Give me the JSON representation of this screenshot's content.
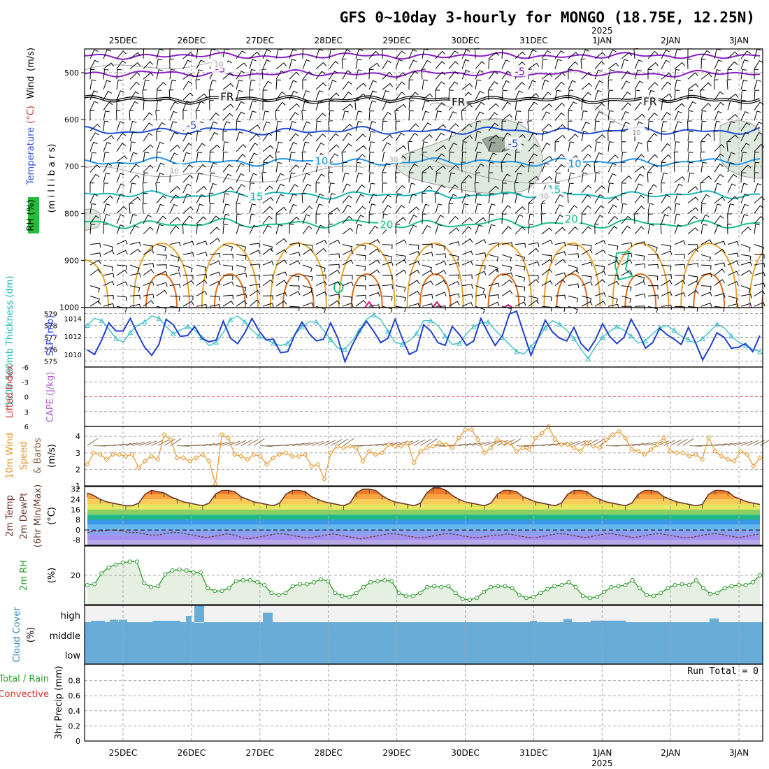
{
  "title": "GFS 0~10day 3-hourly for MONGO (18.75E, 12.25N)",
  "time_axis": {
    "days": [
      "25DEC",
      "26DEC",
      "27DEC",
      "28DEC",
      "29DEC",
      "30DEC",
      "31DEC",
      "1JAN",
      "2JAN",
      "3JAN"
    ],
    "year_label": "2025",
    "year_label_day": "1JAN"
  },
  "colors": {
    "frame": "#000000",
    "grid": "#a8a8a8",
    "purple_contour": "#8a1fc7",
    "blue_contour": "#1f4fd6",
    "lightblue_contour": "#2196e8",
    "cyan_contour": "#19b8b8",
    "teal_contour": "#19c08a",
    "orange_contour": "#e8a32a",
    "darkorange_contour": "#e06b1a",
    "magenta_contour": "#d0127a",
    "rh_shade": "#dfeadf",
    "slp_line": "#1f3fd0",
    "thickness_line": "#3ec0c8",
    "lifted_index_zero": "#e05050",
    "wind_speed": "#e8962a",
    "barb": "#8a6a4a",
    "temp_line": "#6a3a2a",
    "rh2m_line": "#2a9a2a",
    "rh2m_fill": "#e6f0e2",
    "cloud_fill": "#6aacd8",
    "cloud_gap": "#f2f2f2"
  },
  "panels": {
    "upper_air": {
      "ylabel_parts": [
        "RH (%)",
        "Temperature",
        "(°C)",
        "Wind",
        "(m/s)"
      ],
      "ylabel_unit": "(m i l l i b a r s)",
      "pressure_ticks": [
        "500",
        "600",
        "700",
        "800",
        "900",
        "1000"
      ],
      "contour_labels": [
        {
          "text": "-5",
          "day": 1.42,
          "p": 493
        },
        {
          "text": "-5",
          "day": 5.8,
          "p": 499
        },
        {
          "text": "FR",
          "day": 1.52,
          "p": 553
        },
        {
          "text": "FR",
          "day": 4.9,
          "p": 564
        },
        {
          "text": "FR",
          "day": 7.7,
          "p": 563
        },
        {
          "text": "-5",
          "day": 1.0,
          "p": 614
        },
        {
          "text": "-5",
          "day": 5.7,
          "p": 653
        },
        {
          "text": "10",
          "day": 2.9,
          "p": 690
        },
        {
          "text": "10",
          "day": 6.6,
          "p": 696
        },
        {
          "text": "15",
          "day": 1.95,
          "p": 766
        },
        {
          "text": "15",
          "day": 6.3,
          "p": 751
        },
        {
          "text": "20",
          "day": 3.85,
          "p": 826
        },
        {
          "text": "20",
          "day": 6.55,
          "p": 814
        },
        {
          "text": "10",
          "day": 1.4,
          "p": 481
        },
        {
          "text": "10",
          "day": 0.75,
          "p": 709
        },
        {
          "text": "30",
          "day": 3.95,
          "p": 684
        },
        {
          "text": "30",
          "day": 6.15,
          "p": 763
        },
        {
          "text": "10",
          "day": 7.5,
          "p": 627
        }
      ]
    },
    "slp": {
      "label_left": "1000-500mb Thickness (dm)",
      "label_right": "SLP (mb)",
      "thickness_ticks": [
        "579",
        "578",
        "577",
        "576",
        "575"
      ],
      "slp_ticks": [
        "1014",
        "1012",
        "1010"
      ]
    },
    "cape": {
      "label_left": "Lifted Index",
      "label_right": "CAPE (J/kg)",
      "ticks": [
        "-6",
        "-3",
        "0",
        "3",
        "6"
      ]
    },
    "wind10m": {
      "label_lines": [
        "10m Wind",
        "Speed",
        "& Barbs",
        "(m/s)"
      ],
      "ticks": [
        "4",
        "3",
        "2",
        "1"
      ]
    },
    "temp2m": {
      "label_lines": [
        "2m Temp",
        "2m DewPt",
        "(6hr Min/Max)",
        "(°C)"
      ],
      "ticks": [
        "32",
        "24",
        "16",
        "8",
        "0",
        "-8"
      ]
    },
    "rh2m": {
      "label_lines": [
        "2m RH",
        "(%)"
      ],
      "ticks": [
        "20"
      ]
    },
    "cloud": {
      "label_lines": [
        "Cloud Cover",
        "(%)"
      ],
      "levels": [
        "high",
        "middle",
        "low"
      ]
    },
    "precip": {
      "label_lines": [
        "Total / Rain",
        "Convective",
        "3hr Precip (mm)"
      ],
      "ticks": [
        "0",
        "0.2",
        "0.4",
        "0.6",
        "0.8"
      ],
      "run_total": "Run Total = 0"
    }
  },
  "chart_data": [
    {
      "type": "line",
      "title": "1000-500mb Thickness (dm)",
      "x_unit": "days from 25DEC 00Z (3-hourly)",
      "ylim": [
        574.5,
        579.5
      ],
      "series": [
        {
          "name": "1000-500mb Thickness (dm)",
          "values": [
            578.0,
            578.6,
            578.4,
            577.7,
            576.9,
            576.6,
            577.4,
            578.0,
            578.3,
            578.8,
            578.6,
            577.9,
            577.3,
            577.6,
            577.9,
            577.6,
            577.0,
            576.3,
            576.6,
            577.4,
            578.5,
            578.8,
            578.3,
            577.6,
            577.1,
            576.8,
            576.5,
            576.3,
            576.5,
            577.2,
            577.9,
            578.3,
            578.3,
            577.6,
            576.8,
            576.1,
            576.0,
            576.7,
            577.6,
            578.5,
            578.9,
            578.5,
            577.5,
            576.6,
            576.4,
            576.7,
            577.3,
            578.4,
            578.4,
            578.0,
            577.1,
            576.4,
            576.5,
            577.3,
            577.9,
            578.2,
            578.3,
            577.6,
            577.0,
            576.4,
            575.8,
            575.6,
            576.2,
            576.9,
            577.8,
            578.4,
            578.1,
            577.6,
            576.9,
            576.0,
            575.2,
            576.2,
            577.0,
            577.5,
            577.9,
            577.6,
            577.1,
            576.5,
            576.7,
            577.3,
            577.8,
            578.0,
            577.6,
            577.1,
            576.8,
            576.5,
            576.9,
            577.5,
            578.1,
            577.8,
            577.1,
            576.6,
            576.3,
            576.0,
            575.8
          ]
        }
      ]
    },
    {
      "type": "line",
      "title": "SLP (mb)",
      "ylim": [
        1008.6,
        1015.2
      ],
      "series": [
        {
          "name": "SLP (mb)",
          "values": [
            1010.5,
            1010.0,
            1011.6,
            1013.5,
            1012.6,
            1012.6,
            1014.0,
            1012.3,
            1010.8,
            1009.9,
            1011.1,
            1013.9,
            1013.3,
            1012.0,
            1012.1,
            1013.1,
            1011.8,
            1011.4,
            1011.6,
            1013.7,
            1011.8,
            1011.2,
            1012.4,
            1014.0,
            1012.6,
            1011.6,
            1011.7,
            1010.2,
            1010.3,
            1012.2,
            1013.6,
            1012.3,
            1011.5,
            1011.7,
            1013.5,
            1011.8,
            1009.2,
            1011.0,
            1012.5,
            1013.7,
            1012.6,
            1011.3,
            1011.8,
            1013.9,
            1011.8,
            1010.0,
            1010.4,
            1013.3,
            1012.6,
            1011.3,
            1011.0,
            1013.1,
            1012.2,
            1011.0,
            1011.5,
            1014.0,
            1012.4,
            1011.0,
            1012.1,
            1014.5,
            1014.8,
            1012.3,
            1009.9,
            1011.8,
            1013.8,
            1012.5,
            1011.8,
            1011.5,
            1013.0,
            1011.2,
            1010.4,
            1011.6,
            1013.4,
            1012.0,
            1011.2,
            1011.9,
            1013.9,
            1012.5,
            1010.7,
            1011.3,
            1012.9,
            1012.2,
            1011.7,
            1011.1,
            1013.0,
            1011.3,
            1009.4,
            1010.8,
            1012.4,
            1011.9,
            1010.7,
            1010.8,
            1011.2,
            1010.3,
            1012.1
          ]
        }
      ]
    },
    {
      "type": "line",
      "title": "10m Wind Speed (m/s)",
      "ylim": [
        1,
        4.6
      ],
      "series": [
        {
          "name": "10m Wind Speed (m/s)",
          "values": [
            2.3,
            3.0,
            2.9,
            2.6,
            2.9,
            2.9,
            2.8,
            2.9,
            2.1,
            2.5,
            2.8,
            2.6,
            4.1,
            3.8,
            2.7,
            2.7,
            2.5,
            2.7,
            2.9,
            2.5,
            1.1,
            4.1,
            3.9,
            2.9,
            2.8,
            2.6,
            2.9,
            2.8,
            2.3,
            2.7,
            2.9,
            3.0,
            2.8,
            2.8,
            2.9,
            2.2,
            2.3,
            1.4,
            3.0,
            3.4,
            3.3,
            3.4,
            3.3,
            2.5,
            3.1,
            2.9,
            3.0,
            3.5,
            3.4,
            3.4,
            3.6,
            2.4,
            3.1,
            3.3,
            3.4,
            3.6,
            3.5,
            3.3,
            3.9,
            4.4,
            4.4,
            3.8,
            3.0,
            3.3,
            3.8,
            3.6,
            3.6,
            3.1,
            3.3,
            3.2,
            3.9,
            4.2,
            4.6,
            3.8,
            3.5,
            3.5,
            3.3,
            3.1,
            3.6,
            3.4,
            3.3,
            3.8,
            4.1,
            4.3,
            3.9,
            3.2,
            3.1,
            2.9,
            3.2,
            3.5,
            3.9,
            3.1,
            3.0,
            3.0,
            2.8,
            2.9,
            2.6,
            3.9,
            3.1,
            2.8,
            2.6,
            2.5,
            3.1,
            2.9,
            2.2,
            2.7
          ]
        }
      ]
    },
    {
      "type": "area",
      "title": "2m Temp (°C)",
      "ylim": [
        -12,
        34
      ],
      "series": [
        {
          "name": "2m Temp (°C)",
          "values": [
            29,
            27,
            24,
            22,
            21,
            20,
            19,
            19,
            21,
            28,
            31,
            30,
            29,
            26,
            24,
            22,
            21,
            20,
            19,
            21,
            28,
            31,
            31,
            30,
            26,
            24,
            22,
            21,
            20,
            19,
            21,
            28,
            31,
            31,
            30,
            26,
            24,
            22,
            21,
            20,
            19,
            21,
            29,
            32,
            32,
            31,
            27,
            24,
            22,
            21,
            20,
            19,
            21,
            29,
            33,
            33,
            31,
            27,
            24,
            22,
            21,
            20,
            19,
            21,
            28,
            31,
            31,
            30,
            26,
            24,
            22,
            21,
            20,
            19,
            21,
            28,
            31,
            31,
            30,
            26,
            24,
            22,
            21,
            20,
            19,
            21,
            28,
            31,
            31,
            30,
            26,
            24,
            22,
            21,
            20,
            19,
            20,
            28,
            31,
            31,
            30,
            26,
            24,
            22,
            21,
            20
          ]
        }
      ]
    },
    {
      "type": "line",
      "title": "2m DewPt (°C)",
      "series": [
        {
          "name": "2m DewPt (°C)",
          "values": [
            -2,
            -1,
            -1,
            0,
            0,
            -1,
            -2,
            -2,
            -3,
            -4,
            -4,
            -3,
            -2,
            -2,
            -3,
            -4,
            -5,
            -6,
            -5,
            -4,
            -3,
            -4,
            -6,
            -7,
            -6,
            -5,
            -4,
            -3,
            -3,
            -4,
            -5,
            -6,
            -6,
            -5,
            -4,
            -3,
            -4,
            -5,
            -6,
            -7,
            -6,
            -5,
            -4,
            -3,
            -3,
            -4,
            -5,
            -6,
            -6,
            -5,
            -4,
            -3,
            -3,
            -4,
            -5,
            -6,
            -6,
            -5,
            -4,
            -4,
            -3,
            -4,
            -5,
            -6,
            -6,
            -5,
            -4,
            -3,
            -3,
            -4,
            -5,
            -6,
            -5,
            -4,
            -3,
            -3,
            -4,
            -5,
            -6,
            -5,
            -4,
            -3,
            -3,
            -4,
            -5,
            -6,
            -6,
            -5,
            -4,
            -3,
            -3,
            -4,
            -5,
            -6,
            -5,
            -4,
            -3
          ]
        }
      ]
    },
    {
      "type": "area",
      "title": "2m RH (%)",
      "ylim": [
        5,
        35
      ],
      "series": [
        {
          "name": "2m RH (%)",
          "values": [
            15,
            15.5,
            21,
            24,
            25.5,
            26.5,
            27,
            27,
            16,
            14,
            14.5,
            20.5,
            22.5,
            23,
            22.5,
            21.5,
            21.5,
            13.5,
            12,
            12,
            13.5,
            17,
            17.5,
            17.5,
            16.5,
            15,
            11,
            10,
            11,
            14.5,
            15.5,
            15.5,
            16.5,
            18,
            17,
            11,
            9.5,
            9,
            11,
            14,
            16.5,
            17,
            17.5,
            17,
            11,
            9.5,
            9.5,
            11,
            14,
            14.5,
            14,
            14.5,
            11,
            8,
            7.5,
            8.5,
            11.5,
            14,
            14.5,
            14.5,
            13.5,
            10,
            8.5,
            9,
            11,
            13,
            14.5,
            15,
            16.5,
            14,
            9.5,
            8.5,
            9,
            11.5,
            14,
            14.5,
            15,
            17.5,
            13.5,
            10,
            9.5,
            11,
            13.5,
            15,
            15.5,
            15,
            17.5,
            13.5,
            10.5,
            11,
            13.5,
            14.5,
            15,
            15,
            16.5,
            20
          ]
        }
      ]
    },
    {
      "type": "bar",
      "title": "Cloud Cover (%) high",
      "categories": [
        "25DEC 00Z",
        "25DEC 06Z",
        "25DEC 12Z",
        "26DEC 00Z",
        "26DEC 03Z",
        "26DEC 06Z",
        "27DEC 03Z",
        "31DEC 12Z",
        "1JAN 00Z",
        "1JAN 06Z",
        "2JAN 18Z"
      ],
      "values": [
        3,
        8,
        8,
        4,
        20,
        55,
        30,
        4,
        10,
        5,
        12
      ]
    },
    {
      "type": "bar",
      "title": "3hr Precip (mm)",
      "ylim": [
        0,
        1
      ],
      "values": [
        0
      ]
    }
  ]
}
